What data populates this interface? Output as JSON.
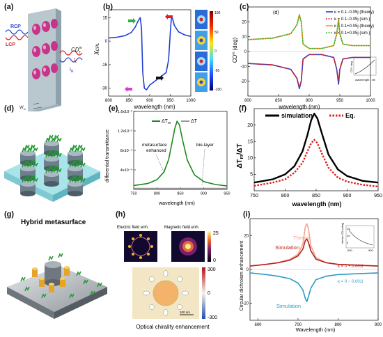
{
  "panels": {
    "a": {
      "label": "(a)",
      "rcp": "RCP",
      "lcp": "LCP",
      "cd": "CD",
      "cd_sup": "m",
      "cd_sub": "T",
      "il": "I",
      "il_sub": "L",
      "ir": "I",
      "ir_sub": "R",
      "wm": "W",
      "wm_sub": "m",
      "wi": "W",
      "wi_sub": "i"
    },
    "b": {
      "label": "(b)",
      "ylabel": "χ",
      "ylabel_sub": "CPL",
      "xlabel": "wavelength (nm)",
      "colorbar_ticks": [
        "100",
        "50",
        "0",
        "-50",
        "-100"
      ]
    },
    "c": {
      "label": "(c)",
      "inner_label": "(d)",
      "ylabel": "CD",
      "ylabel_sup": "m",
      "ylabel_unit": "(deg)",
      "xlabel": "wavelength (nm)",
      "inset_xlabel": "wavelength / nm",
      "inset_ylabel": "CD / deg",
      "legend": [
        "κ = 0.1−0.05j (theory)",
        "κ = 0.1−0.05j (sim.)",
        "κ = 0.1+0.05j (theory)",
        "κ = 0.1+0.05j (sim.)"
      ]
    },
    "d": {
      "label": "(d)"
    },
    "e": {
      "label": "(e)",
      "ylabel": "differential transmittance",
      "xlabel": "wavelength (nm)",
      "legend": [
        "ΔT",
        "ΔT"
      ],
      "legend_sub": "m",
      "ann1": [
        "metasurface",
        "enhanced"
      ],
      "ann2": "bio-layer"
    },
    "f": {
      "label": "(f)",
      "ylabel": "ΔT",
      "ylabel_sub": "m",
      "ylabel_rest": "/ΔT",
      "xlabel": "wavelength (nm)",
      "legend": [
        "simulation",
        "Eq."
      ]
    },
    "g": {
      "label": "(g)",
      "title": "Hybrid metasurface"
    },
    "h": {
      "label": "(h)",
      "e_title": "Electric field enh.",
      "m_title": "Magnetic field enh.",
      "cb1_ticks": [
        "25",
        "0"
      ],
      "cb2_ticks": [
        "300",
        "0",
        "-300"
      ],
      "scale": "100 nm",
      "bottom": "Optical chirality  enhancement"
    },
    "i": {
      "label": "(i)",
      "ylabel": "Circular dichroism enhancement",
      "xlabel": "Wavelength (nm)",
      "theory": "Theory",
      "sim_top": "Simulation",
      "sim_bot": "Simulation",
      "kappa_top": "κ = 0 + 0.001i",
      "kappa_bot": "κ = 0 − 0.001i",
      "inset_ylabel": "Intrinsic CD (mdeg)",
      "inset_xticks": [
        "600",
        "900"
      ],
      "inset_yticks": [
        "15",
        "10",
        "5"
      ]
    }
  },
  "chart_data": [
    {
      "id": "b",
      "type": "line",
      "xlim": [
        800,
        1000
      ],
      "ylim": [
        -35,
        20
      ],
      "xticks": [
        800,
        850,
        900,
        950,
        1000
      ],
      "yticks": [
        15,
        0,
        -15,
        -30
      ],
      "series": [
        {
          "color": "#1f3fd1",
          "x": [
            800,
            820,
            840,
            855,
            865,
            872,
            877,
            880,
            883,
            887,
            892,
            900,
            915,
            930,
            940,
            946,
            950,
            953,
            956,
            960,
            970,
            985,
            1000
          ],
          "y": [
            2.0,
            2.5,
            3.5,
            5.5,
            9,
            13,
            15,
            8,
            -20,
            -30,
            -31,
            -28,
            -25,
            -22,
            -20,
            -12,
            5,
            16,
            14,
            10,
            6,
            4,
            3
          ]
        }
      ]
    },
    {
      "id": "c",
      "type": "line",
      "xlim": [
        800,
        1000
      ],
      "ylim": [
        -30,
        30
      ],
      "xticks": [
        800,
        850,
        900,
        950,
        1000
      ],
      "yticks": [
        -20,
        -10,
        0,
        10,
        20
      ],
      "series": [
        {
          "color": "#1f3fd1",
          "dash": false,
          "x": [
            800,
            840,
            870,
            880,
            884,
            887,
            890,
            900,
            920,
            940,
            945,
            948,
            950,
            955,
            970,
            1000
          ],
          "y": [
            -8,
            -9,
            -12,
            -18,
            -25,
            -20,
            -5,
            -2,
            -2,
            -4,
            -12,
            -22,
            -12,
            -5,
            -4,
            -4
          ]
        },
        {
          "color": "#e02020",
          "dash": true,
          "x": [
            800,
            840,
            870,
            880,
            884,
            887,
            890,
            900,
            920,
            940,
            945,
            948,
            950,
            955,
            970,
            1000
          ],
          "y": [
            -8,
            -9,
            -12,
            -18,
            -24,
            -20,
            -5,
            -2,
            -2,
            -4,
            -12,
            -21,
            -12,
            -5,
            -4,
            -4
          ]
        },
        {
          "color": "#f29b1e",
          "dash": false,
          "x": [
            800,
            840,
            870,
            880,
            884,
            887,
            890,
            900,
            920,
            940,
            945,
            948,
            950,
            955,
            970,
            1000
          ],
          "y": [
            8,
            9,
            12,
            18,
            25,
            20,
            5,
            2,
            2,
            4,
            12,
            22,
            12,
            5,
            4,
            4
          ]
        },
        {
          "color": "#2bb33a",
          "dash": true,
          "x": [
            800,
            840,
            870,
            880,
            884,
            887,
            890,
            900,
            920,
            940,
            945,
            948,
            950,
            955,
            970,
            1000
          ],
          "y": [
            8,
            9,
            12,
            18,
            24,
            20,
            5,
            2,
            2,
            4,
            12,
            21,
            12,
            5,
            4,
            4
          ]
        }
      ]
    },
    {
      "id": "e",
      "type": "line",
      "xlim": [
        750,
        950
      ],
      "ylim": [
        0,
        1.6
      ],
      "xticks": [
        750,
        800,
        850,
        900,
        950
      ],
      "yticks": [
        0.4,
        0.8,
        1.2,
        1.6
      ],
      "ytick_labels": [
        "4x10⁻⁴",
        "8x10⁻⁴",
        "1.2x10⁻³",
        "1.6x10⁻³"
      ],
      "series": [
        {
          "name": "ΔT_m",
          "color": "#1a8a1a",
          "x": [
            750,
            780,
            800,
            815,
            825,
            832,
            838,
            843,
            848,
            855,
            865,
            880,
            900,
            925,
            950
          ],
          "y": [
            0.08,
            0.12,
            0.2,
            0.36,
            0.62,
            0.95,
            1.25,
            1.4,
            1.32,
            1.0,
            0.6,
            0.3,
            0.16,
            0.1,
            0.07
          ]
        },
        {
          "name": "ΔT",
          "color": "#999999",
          "x": [
            750,
            950
          ],
          "y": [
            0.02,
            0.02
          ]
        }
      ]
    },
    {
      "id": "f",
      "type": "line",
      "xlim": [
        750,
        950
      ],
      "ylim": [
        0,
        25
      ],
      "xticks": [
        750,
        800,
        850,
        900,
        950
      ],
      "yticks": [
        5,
        10,
        15,
        20
      ],
      "series": [
        {
          "name": "simulation",
          "color": "#000000",
          "x": [
            750,
            780,
            800,
            815,
            828,
            836,
            842,
            847,
            852,
            860,
            870,
            885,
            900,
            925,
            950
          ],
          "y": [
            2.5,
            3.5,
            5,
            7.5,
            12,
            17,
            21.5,
            23.5,
            22,
            17,
            11,
            6.5,
            4.5,
            3,
            2.5
          ]
        },
        {
          "name": "Eq.",
          "color": "#e02020",
          "dash": true,
          "x": [
            750,
            780,
            800,
            815,
            828,
            836,
            842,
            847,
            852,
            860,
            870,
            885,
            900,
            925,
            950
          ],
          "y": [
            1.5,
            2.5,
            3.5,
            5.5,
            8.5,
            12,
            14.5,
            15.5,
            14.5,
            11,
            7,
            4,
            2.8,
            1.8,
            1.3
          ]
        }
      ]
    },
    {
      "id": "i",
      "type": "line",
      "xlim": [
        580,
        900
      ],
      "ylim": [
        -30,
        30
      ],
      "xticks": [
        600,
        700,
        800,
        900
      ],
      "yticks": [
        -20,
        0,
        20
      ],
      "series": [
        {
          "name": "Theory",
          "color": "#f0a58a",
          "x": [
            580,
            620,
            650,
            680,
            700,
            712,
            718,
            722,
            726,
            732,
            745,
            770,
            800,
            850,
            900
          ],
          "y": [
            2,
            3,
            4,
            6,
            9,
            15,
            25,
            27,
            24,
            14,
            7,
            4,
            3,
            2.5,
            2
          ]
        },
        {
          "name": "κ = 0 + 0.001i",
          "color": "#b81f1f",
          "x": [
            580,
            620,
            650,
            680,
            700,
            712,
            718,
            722,
            726,
            732,
            745,
            770,
            800,
            850,
            900
          ],
          "y": [
            2,
            3,
            4,
            5.5,
            8,
            12,
            17,
            18,
            16,
            11,
            6,
            4,
            3,
            2.5,
            2
          ]
        },
        {
          "name": "κ = 0 − 0.001i",
          "color": "#2a9bc6",
          "x": [
            580,
            620,
            650,
            680,
            700,
            712,
            718,
            722,
            726,
            732,
            745,
            770,
            800,
            850,
            900
          ],
          "y": [
            -2,
            -3,
            -4,
            -5.5,
            -8,
            -12,
            -17,
            -19,
            -16,
            -11,
            -6,
            -4,
            -3,
            -2.5,
            -2
          ]
        }
      ]
    }
  ]
}
